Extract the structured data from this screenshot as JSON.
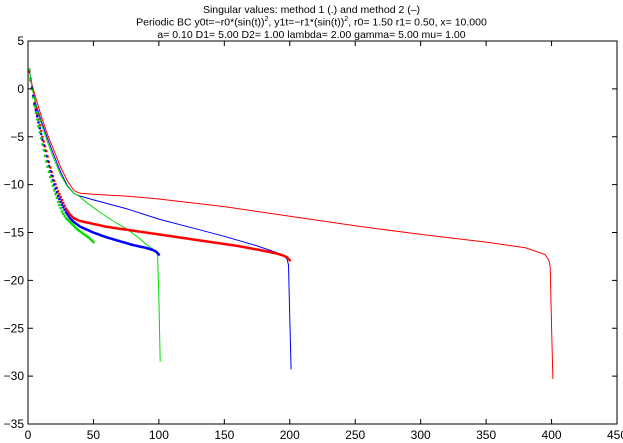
{
  "chart_data": {
    "type": "line",
    "title": "Singular values: method 1 (.) and method 2 (–)",
    "subtitle_line1": {
      "pre": "Periodic BC y0t=−r0*(sin(t))",
      "sup1": "2",
      "mid": ", y1t=−r1*(sin(t))",
      "sup2": "2",
      "post": ",   r0= 1.50   r1= 0.50,  x= 10.000"
    },
    "subtitle_line2": "a= 0.10  D1= 5.00  D2= 1.00  lambda= 2.00  gamma= 5.00   mu= 1.00",
    "xlabel": "",
    "ylabel": "",
    "xlim": [
      0,
      450
    ],
    "ylim": [
      -35,
      5
    ],
    "xticks": [
      "0",
      "50",
      "100",
      "150",
      "200",
      "250",
      "300",
      "350",
      "400",
      "450"
    ],
    "yticks": [
      "5",
      "0",
      "−5",
      "−10",
      "−15",
      "−20",
      "−25",
      "−30",
      "−35"
    ],
    "grid": false,
    "series": [
      {
        "method": 2,
        "style": "line",
        "color": "#ff0000",
        "x": [
          1,
          3,
          6,
          10,
          15,
          20,
          25,
          30,
          35,
          38,
          40,
          50,
          75,
          100,
          150,
          200,
          250,
          300,
          350,
          380,
          395,
          398,
          399,
          400,
          401
        ],
        "y": [
          1.8,
          0.5,
          -1.0,
          -2.8,
          -4.8,
          -6.5,
          -8.2,
          -9.6,
          -10.6,
          -10.8,
          -10.9,
          -11.0,
          -11.2,
          -11.5,
          -12.3,
          -13.3,
          -14.3,
          -15.2,
          -16.0,
          -16.6,
          -17.3,
          -17.9,
          -18.6,
          -25.0,
          -30.3
        ]
      },
      {
        "method": 2,
        "style": "line",
        "color": "#0000ff",
        "x": [
          1,
          3,
          6,
          10,
          15,
          20,
          25,
          30,
          35,
          38,
          40,
          50,
          75,
          100,
          125,
          150,
          175,
          190,
          196,
          198,
          199,
          200,
          201
        ],
        "y": [
          2.0,
          0.2,
          -1.6,
          -3.3,
          -5.2,
          -7.0,
          -8.7,
          -10.1,
          -10.9,
          -11.1,
          -11.2,
          -11.6,
          -12.5,
          -13.6,
          -14.5,
          -15.4,
          -16.4,
          -17.1,
          -17.5,
          -17.8,
          -18.4,
          -24.0,
          -29.3
        ]
      },
      {
        "method": 2,
        "style": "line",
        "color": "#00dd00",
        "x": [
          1,
          3,
          6,
          10,
          15,
          20,
          25,
          30,
          35,
          38,
          40,
          45,
          55,
          65,
          75,
          85,
          90,
          95,
          98,
          99,
          100,
          101
        ],
        "y": [
          2.0,
          0.2,
          -1.8,
          -3.6,
          -5.6,
          -7.4,
          -9.0,
          -10.2,
          -10.9,
          -11.1,
          -11.3,
          -11.9,
          -12.9,
          -13.8,
          -14.6,
          -15.6,
          -16.2,
          -16.7,
          -17.1,
          -17.4,
          -22.0,
          -28.5
        ]
      },
      {
        "method": 1,
        "style": "dots",
        "color": "#ff0000",
        "x": [
          1,
          3,
          5,
          8,
          11,
          14,
          17,
          20,
          23,
          26,
          29,
          32,
          35,
          38,
          40,
          50,
          60,
          70,
          80,
          90,
          100,
          120,
          140,
          160,
          180,
          190,
          195,
          198,
          200
        ],
        "y": [
          1.8,
          0.0,
          -1.5,
          -3.2,
          -5.0,
          -6.5,
          -8.2,
          -9.6,
          -10.7,
          -11.6,
          -12.5,
          -13.1,
          -13.5,
          -13.7,
          -13.8,
          -14.1,
          -14.4,
          -14.6,
          -14.8,
          -15.0,
          -15.2,
          -15.6,
          -16.0,
          -16.4,
          -16.9,
          -17.2,
          -17.4,
          -17.6,
          -17.9
        ]
      },
      {
        "method": 1,
        "style": "dots",
        "color": "#0000ff",
        "x": [
          1,
          3,
          5,
          8,
          11,
          14,
          17,
          20,
          23,
          26,
          29,
          32,
          35,
          38,
          40,
          50,
          60,
          70,
          80,
          90,
          95,
          98,
          100
        ],
        "y": [
          2.0,
          0.1,
          -1.6,
          -3.5,
          -5.3,
          -7.0,
          -8.6,
          -10.0,
          -11.2,
          -12.1,
          -12.9,
          -13.5,
          -13.9,
          -14.2,
          -14.4,
          -15.0,
          -15.5,
          -15.9,
          -16.3,
          -16.6,
          -16.8,
          -17.0,
          -17.3
        ]
      },
      {
        "method": 1,
        "style": "dots",
        "color": "#00dd00",
        "x": [
          1,
          3,
          5,
          8,
          11,
          14,
          17,
          20,
          23,
          26,
          29,
          32,
          35,
          38,
          41,
          44,
          47,
          50
        ],
        "y": [
          2.0,
          0.0,
          -1.8,
          -3.9,
          -5.8,
          -7.6,
          -9.2,
          -10.6,
          -11.8,
          -12.8,
          -13.5,
          -13.9,
          -14.3,
          -14.7,
          -15.0,
          -15.3,
          -15.6,
          -16.0
        ]
      }
    ]
  }
}
